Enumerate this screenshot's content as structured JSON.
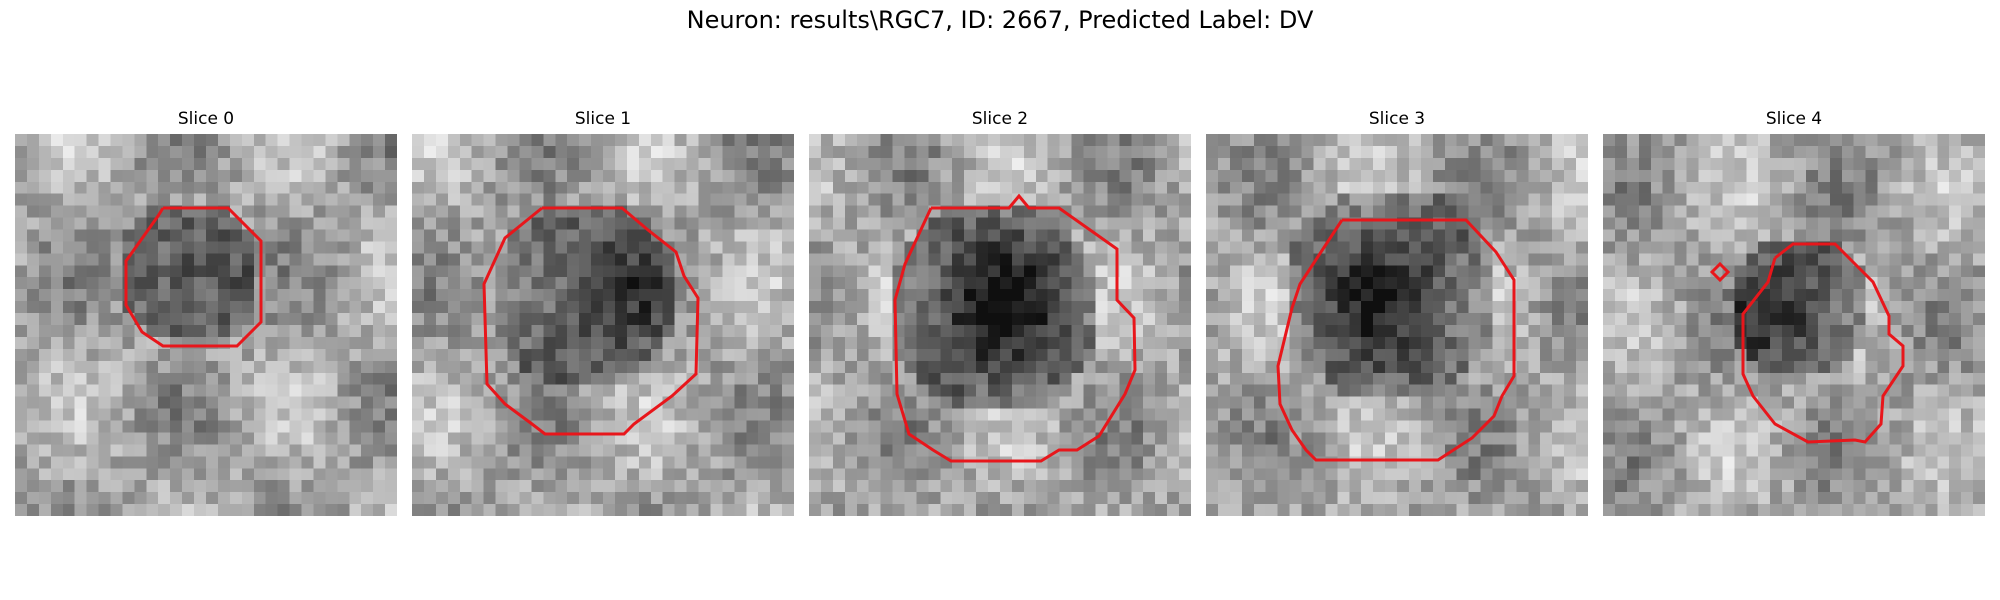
{
  "figure": {
    "title": "Neuron: results\\RGC7, ID: 2667, Predicted Label: DV"
  },
  "slices": [
    {
      "title": "Slice 0"
    },
    {
      "title": "Slice 1"
    },
    {
      "title": "Slice 2"
    },
    {
      "title": "Slice 3"
    },
    {
      "title": "Slice 4"
    }
  ],
  "colors": {
    "contour": "#e8161b",
    "background": "#ffffff"
  }
}
